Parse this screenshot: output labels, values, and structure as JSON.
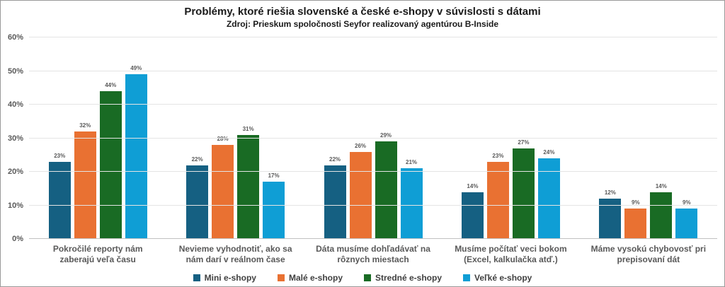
{
  "chart_data": {
    "type": "bar",
    "title": "Problémy, ktoré riešia slovenské a české e-shopy v súvislosti s dátami",
    "subtitle": "Zdroj: Prieskum spoločnosti Seyfor realizovaný agentúrou B-Inside",
    "categories": [
      "Pokročilé reporty nám zaberajú veľa času",
      "Nevieme vyhodnotiť, ako sa nám darí v reálnom čase",
      "Dáta musíme dohľadávať na rôznych miestach",
      "Musíme počítať veci bokom (Excel, kalkulačka atď.)",
      "Máme vysokú chybovosť pri prepisovaní dát"
    ],
    "series": [
      {
        "name": "Mini e-shopy",
        "color": "#156082",
        "values": [
          23,
          22,
          22,
          14,
          12
        ]
      },
      {
        "name": "Malé e-shopy",
        "color": "#E97132",
        "values": [
          32,
          28,
          26,
          23,
          9
        ]
      },
      {
        "name": "Stredné e-shopy",
        "color": "#196B24",
        "values": [
          44,
          31,
          29,
          27,
          14
        ]
      },
      {
        "name": "Veľké e-shopy",
        "color": "#0F9ED5",
        "values": [
          49,
          17,
          21,
          24,
          9
        ]
      }
    ],
    "ylabel": "",
    "xlabel": "",
    "ylim": [
      0,
      60
    ],
    "yticks": [
      {
        "value": 0,
        "label": "0%"
      },
      {
        "value": 10,
        "label": "10%"
      },
      {
        "value": 20,
        "label": "20%"
      },
      {
        "value": 30,
        "label": "30%"
      },
      {
        "value": 40,
        "label": "40%"
      },
      {
        "value": 50,
        "label": "50%"
      },
      {
        "value": 60,
        "label": "60%"
      }
    ],
    "data_label_suffix": "%",
    "grid": true,
    "legend_position": "bottom"
  }
}
